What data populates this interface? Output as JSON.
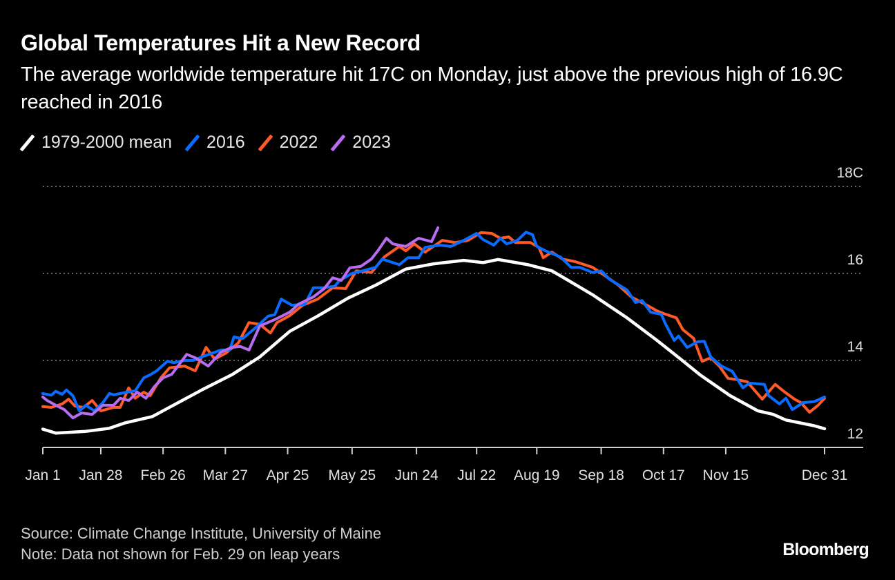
{
  "header": {
    "title": "Global Temperatures Hit a New Record",
    "subtitle": "The average worldwide temperature hit 17C on Monday, just above the previous high of 16.9C reached in 2016"
  },
  "footer": {
    "source": "Source: Climate Change Institute, University of Maine",
    "note": "Note: Data not shown for Feb. 29 on leap years",
    "logo": "Bloomberg"
  },
  "chart_data": {
    "type": "line",
    "title": "Global Temperatures Hit a New Record",
    "xlabel": "",
    "ylabel": "",
    "y_unit": "C",
    "ylim": [
      12,
      18
    ],
    "y_ticks": [
      {
        "value": 18,
        "label": "18C"
      },
      {
        "value": 16,
        "label": "16"
      },
      {
        "value": 14,
        "label": "14"
      },
      {
        "value": 12,
        "label": "12"
      }
    ],
    "x_ticks": [
      "Jan 1",
      "Jan 28",
      "Feb 26",
      "Mar 27",
      "Apr 25",
      "May 25",
      "Jun 24",
      "Jul 22",
      "Aug 19",
      "Sep 18",
      "Oct 17",
      "Nov 15",
      "Dec 31"
    ],
    "xlim": [
      "Jan 1",
      "Dec 31"
    ],
    "grid": "horizontal dotted",
    "y_axis_position": "right",
    "legend_position": "top-left",
    "background": "#000000",
    "series": [
      {
        "name": "1979-2000 mean",
        "color": "#ffffff",
        "points": [
          [
            "Jan 1",
            12.42
          ],
          [
            "Jan 7",
            12.33
          ],
          [
            "Jan 21",
            12.37
          ],
          [
            "Feb 1",
            12.44
          ],
          [
            "Feb 8",
            12.56
          ],
          [
            "Feb 21",
            12.71
          ],
          [
            "Mar 2",
            12.95
          ],
          [
            "Mar 16",
            13.32
          ],
          [
            "Mar 30",
            13.67
          ],
          [
            "Apr 12",
            14.08
          ],
          [
            "Apr 26",
            14.67
          ],
          [
            "May 9",
            15.02
          ],
          [
            "May 23",
            15.43
          ],
          [
            "Jun 5",
            15.73
          ],
          [
            "Jun 19",
            16.1
          ],
          [
            "Jul 2",
            16.22
          ],
          [
            "Jul 16",
            16.3
          ],
          [
            "Jul 25",
            16.25
          ],
          [
            "Aug 1",
            16.32
          ],
          [
            "Aug 15",
            16.2
          ],
          [
            "Aug 26",
            16.06
          ],
          [
            "Sep 3",
            15.83
          ],
          [
            "Sep 14",
            15.51
          ],
          [
            "Sep 30",
            14.98
          ],
          [
            "Oct 14",
            14.46
          ],
          [
            "Oct 25",
            14.03
          ],
          [
            "Nov 3",
            13.67
          ],
          [
            "Nov 17",
            13.19
          ],
          [
            "Nov 30",
            12.84
          ],
          [
            "Dec 7",
            12.76
          ],
          [
            "Dec 13",
            12.63
          ],
          [
            "Dec 26",
            12.5
          ],
          [
            "Dec 31",
            12.43
          ]
        ]
      },
      {
        "name": "2016",
        "color": "#0a6cff",
        "points": [
          [
            "Jan 1",
            13.24
          ],
          [
            "Jan 5",
            13.2
          ],
          [
            "Jan 7",
            13.29
          ],
          [
            "Jan 10",
            13.22
          ],
          [
            "Jan 12",
            13.32
          ],
          [
            "Jan 15",
            13.19
          ],
          [
            "Jan 18",
            12.84
          ],
          [
            "Jan 21",
            12.97
          ],
          [
            "Jan 25",
            12.84
          ],
          [
            "Jan 29",
            13.03
          ],
          [
            "Feb 1",
            13.24
          ],
          [
            "Feb 3",
            13.21
          ],
          [
            "Feb 9",
            13.27
          ],
          [
            "Feb 13",
            13.3
          ],
          [
            "Feb 17",
            13.6
          ],
          [
            "Feb 20",
            13.67
          ],
          [
            "Feb 23",
            13.76
          ],
          [
            "Feb 28",
            13.98
          ],
          [
            "Mar 3",
            13.95
          ],
          [
            "Mar 8",
            14.0
          ],
          [
            "Mar 12",
            14.0
          ],
          [
            "Mar 16",
            14.08
          ],
          [
            "Mar 25",
            14.24
          ],
          [
            "Mar 29",
            14.24
          ],
          [
            "Mar 31",
            14.54
          ],
          [
            "Apr 4",
            14.5
          ],
          [
            "Apr 10",
            14.75
          ],
          [
            "Apr 16",
            15.02
          ],
          [
            "Apr 19",
            15.05
          ],
          [
            "Apr 22",
            15.41
          ],
          [
            "Apr 27",
            15.27
          ],
          [
            "May 3",
            15.29
          ],
          [
            "May 7",
            15.67
          ],
          [
            "May 12",
            15.67
          ],
          [
            "May 17",
            15.71
          ],
          [
            "May 19",
            15.83
          ],
          [
            "May 25",
            16.0
          ],
          [
            "May 30",
            16.06
          ],
          [
            "Jun 5",
            16.14
          ],
          [
            "Jun 8",
            16.33
          ],
          [
            "Jun 16",
            16.2
          ],
          [
            "Jun 20",
            16.36
          ],
          [
            "Jun 25",
            16.36
          ],
          [
            "Jun 28",
            16.6
          ],
          [
            "Jul 5",
            16.65
          ],
          [
            "Jul 10",
            16.62
          ],
          [
            "Jul 16",
            16.76
          ],
          [
            "Jul 22",
            16.92
          ],
          [
            "Jul 25",
            16.78
          ],
          [
            "Jul 30",
            16.65
          ],
          [
            "Aug 2",
            16.81
          ],
          [
            "Aug 5",
            16.68
          ],
          [
            "Aug 10",
            16.76
          ],
          [
            "Aug 14",
            16.95
          ],
          [
            "Aug 17",
            16.89
          ],
          [
            "Aug 19",
            16.62
          ],
          [
            "Aug 23",
            16.52
          ],
          [
            "Aug 30",
            16.38
          ],
          [
            "Sep 4",
            16.14
          ],
          [
            "Sep 8",
            16.14
          ],
          [
            "Sep 14",
            16.02
          ],
          [
            "Sep 18",
            16.06
          ],
          [
            "Sep 22",
            15.86
          ],
          [
            "Sep 30",
            15.62
          ],
          [
            "Oct 4",
            15.33
          ],
          [
            "Oct 7",
            15.38
          ],
          [
            "Oct 11",
            15.11
          ],
          [
            "Oct 16",
            15.06
          ],
          [
            "Oct 18",
            14.83
          ],
          [
            "Oct 22",
            14.46
          ],
          [
            "Oct 24",
            14.56
          ],
          [
            "Oct 28",
            14.3
          ],
          [
            "Nov 2",
            14.43
          ],
          [
            "Nov 5",
            14.44
          ],
          [
            "Nov 8",
            14.08
          ],
          [
            "Nov 13",
            13.87
          ],
          [
            "Nov 18",
            13.75
          ],
          [
            "Nov 23",
            13.37
          ],
          [
            "Nov 26",
            13.48
          ],
          [
            "Dec 3",
            13.45
          ],
          [
            "Dec 5",
            13.19
          ],
          [
            "Dec 10",
            13.0
          ],
          [
            "Dec 13",
            13.13
          ],
          [
            "Dec 16",
            12.87
          ],
          [
            "Dec 21",
            13.03
          ],
          [
            "Dec 26",
            13.05
          ],
          [
            "Dec 31",
            13.16
          ]
        ]
      },
      {
        "name": "2022",
        "color": "#ff5a28",
        "points": [
          [
            "Jan 1",
            12.94
          ],
          [
            "Jan 5",
            12.92
          ],
          [
            "Jan 10",
            13.0
          ],
          [
            "Jan 13",
            13.11
          ],
          [
            "Jan 16",
            12.95
          ],
          [
            "Jan 20",
            12.92
          ],
          [
            "Jan 24",
            13.08
          ],
          [
            "Jan 28",
            12.84
          ],
          [
            "Feb 3",
            12.92
          ],
          [
            "Feb 6",
            12.92
          ],
          [
            "Feb 10",
            13.37
          ],
          [
            "Feb 13",
            13.13
          ],
          [
            "Feb 17",
            13.27
          ],
          [
            "Feb 20",
            13.19
          ],
          [
            "Feb 25",
            13.6
          ],
          [
            "Mar 1",
            13.83
          ],
          [
            "Mar 8",
            13.87
          ],
          [
            "Mar 13",
            13.76
          ],
          [
            "Mar 18",
            14.3
          ],
          [
            "Mar 22",
            14.03
          ],
          [
            "Mar 27",
            14.16
          ],
          [
            "Apr 2",
            14.4
          ],
          [
            "Apr 7",
            14.87
          ],
          [
            "Apr 12",
            14.83
          ],
          [
            "Apr 17",
            14.63
          ],
          [
            "Apr 20",
            14.87
          ],
          [
            "Apr 26",
            15.03
          ],
          [
            "May 2",
            15.27
          ],
          [
            "May 9",
            15.41
          ],
          [
            "May 16",
            15.67
          ],
          [
            "May 22",
            15.65
          ],
          [
            "May 27",
            16.06
          ],
          [
            "Jun 3",
            16.02
          ],
          [
            "Jun 9",
            16.38
          ],
          [
            "Jun 16",
            16.62
          ],
          [
            "Jun 19",
            16.52
          ],
          [
            "Jun 23",
            16.68
          ],
          [
            "Jun 28",
            16.49
          ],
          [
            "Jul 6",
            16.76
          ],
          [
            "Jul 12",
            16.71
          ],
          [
            "Jul 18",
            16.76
          ],
          [
            "Jul 24",
            16.94
          ],
          [
            "Jul 29",
            16.92
          ],
          [
            "Aug 2",
            16.81
          ],
          [
            "Aug 6",
            16.84
          ],
          [
            "Aug 9",
            16.71
          ],
          [
            "Aug 16",
            16.71
          ],
          [
            "Aug 20",
            16.6
          ],
          [
            "Aug 22",
            16.36
          ],
          [
            "Aug 26",
            16.49
          ],
          [
            "Aug 31",
            16.33
          ],
          [
            "Sep 6",
            16.27
          ],
          [
            "Sep 14",
            16.14
          ],
          [
            "Sep 20",
            15.94
          ],
          [
            "Sep 26",
            15.73
          ],
          [
            "Oct 2",
            15.46
          ],
          [
            "Oct 10",
            15.25
          ],
          [
            "Oct 14",
            15.14
          ],
          [
            "Oct 17",
            15.08
          ],
          [
            "Oct 23",
            14.98
          ],
          [
            "Oct 26",
            14.71
          ],
          [
            "Oct 31",
            14.51
          ],
          [
            "Nov 4",
            13.98
          ],
          [
            "Nov 8",
            14.06
          ],
          [
            "Nov 12",
            13.87
          ],
          [
            "Nov 16",
            13.59
          ],
          [
            "Nov 20",
            13.56
          ],
          [
            "Nov 25",
            13.51
          ],
          [
            "Dec 2",
            13.11
          ],
          [
            "Dec 8",
            13.45
          ],
          [
            "Dec 12",
            13.29
          ],
          [
            "Dec 17",
            13.11
          ],
          [
            "Dec 20",
            13.03
          ],
          [
            "Dec 24",
            12.81
          ],
          [
            "Dec 28",
            12.97
          ],
          [
            "Dec 31",
            13.13
          ]
        ]
      },
      {
        "name": "2023",
        "color": "#b86df0",
        "points": [
          [
            "Jan 1",
            13.16
          ],
          [
            "Jan 3",
            13.08
          ],
          [
            "Jan 7",
            12.97
          ],
          [
            "Jan 11",
            12.87
          ],
          [
            "Jan 15",
            12.68
          ],
          [
            "Jan 19",
            12.79
          ],
          [
            "Jan 24",
            12.76
          ],
          [
            "Jan 29",
            12.97
          ],
          [
            "Feb 3",
            12.97
          ],
          [
            "Feb 6",
            13.13
          ],
          [
            "Feb 10",
            13.08
          ],
          [
            "Feb 14",
            13.27
          ],
          [
            "Feb 18",
            13.13
          ],
          [
            "Feb 22",
            13.4
          ],
          [
            "Feb 26",
            13.6
          ],
          [
            "Mar 2",
            13.68
          ],
          [
            "Mar 9",
            14.14
          ],
          [
            "Mar 13",
            14.06
          ],
          [
            "Mar 19",
            13.87
          ],
          [
            "Mar 25",
            14.19
          ],
          [
            "Mar 30",
            14.3
          ],
          [
            "Apr 3",
            14.32
          ],
          [
            "Apr 7",
            14.24
          ],
          [
            "Apr 12",
            14.79
          ],
          [
            "Apr 19",
            14.94
          ],
          [
            "Apr 26",
            15.11
          ],
          [
            "Apr 30",
            15.29
          ],
          [
            "May 7",
            15.46
          ],
          [
            "May 12",
            15.65
          ],
          [
            "May 16",
            15.9
          ],
          [
            "May 20",
            15.84
          ],
          [
            "May 24",
            16.13
          ],
          [
            "May 29",
            16.16
          ],
          [
            "Jun 3",
            16.33
          ],
          [
            "Jun 6",
            16.52
          ],
          [
            "Jun 10",
            16.81
          ],
          [
            "Jun 13",
            16.68
          ],
          [
            "Jun 19",
            16.62
          ],
          [
            "Jun 25",
            16.81
          ],
          [
            "Jul 1",
            16.73
          ],
          [
            "Jul 4",
            17.05
          ]
        ]
      }
    ]
  }
}
